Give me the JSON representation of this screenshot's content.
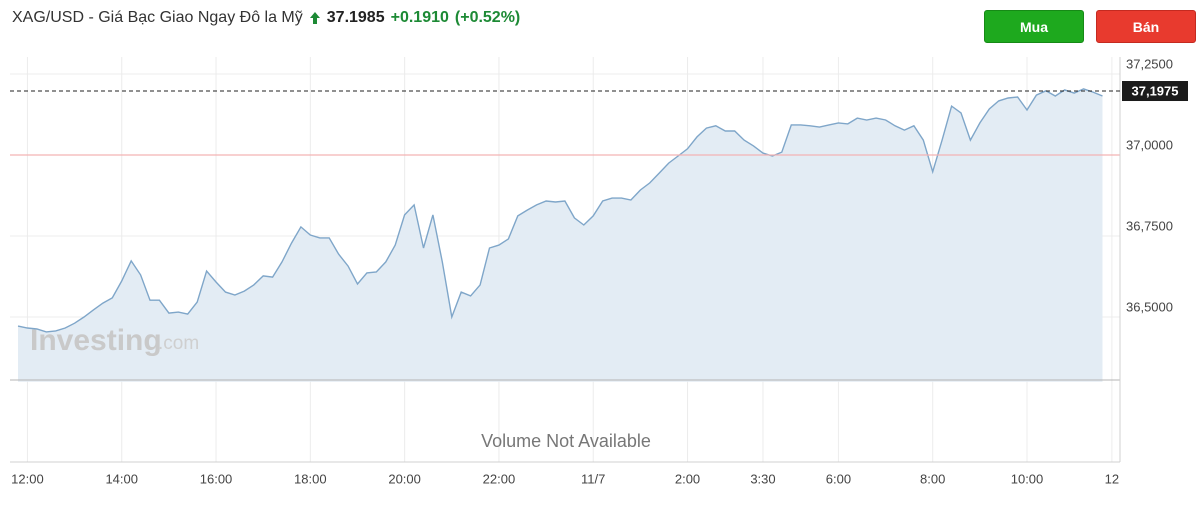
{
  "header": {
    "title": "XAG/USD - Giá Bạc Giao Ngay Đô la Mỹ",
    "price": "37.1985",
    "change": "+0.1910",
    "change_percent": "(+0.52%)"
  },
  "buttons": [
    "Mua",
    "Bán"
  ],
  "watermark": [
    "Investing",
    ".com"
  ],
  "volume_note": "Volume Not Available",
  "chart_data": {
    "type": "area",
    "categories": [
      null,
      "12:00",
      null,
      null,
      null,
      null,
      null,
      null,
      null,
      null,
      null,
      "14:00",
      null,
      null,
      null,
      null,
      null,
      null,
      null,
      null,
      null,
      "16:00",
      null,
      null,
      null,
      null,
      null,
      null,
      null,
      null,
      null,
      "18:00",
      null,
      null,
      null,
      null,
      null,
      null,
      null,
      null,
      null,
      "20:00",
      null,
      null,
      null,
      null,
      null,
      null,
      null,
      null,
      null,
      "22:00",
      null,
      null,
      null,
      null,
      null,
      null,
      null,
      null,
      null,
      "11/7",
      null,
      null,
      null,
      null,
      null,
      null,
      null,
      null,
      null,
      "2:00",
      null,
      null,
      null,
      null,
      null,
      null,
      null,
      "3:30",
      null,
      null,
      null,
      null,
      null,
      null,
      null,
      "6:00",
      null,
      null,
      null,
      null,
      null,
      null,
      null,
      null,
      null,
      "8:00",
      null,
      null,
      null,
      null,
      null,
      null,
      null,
      null,
      null,
      "10:00",
      null,
      null,
      null,
      null,
      null,
      null,
      null,
      null,
      "12"
    ],
    "values": [
      36.472,
      36.466,
      36.463,
      36.454,
      36.457,
      36.466,
      36.481,
      36.5,
      36.522,
      36.543,
      36.559,
      36.611,
      36.673,
      36.63,
      36.552,
      36.552,
      36.512,
      36.515,
      36.509,
      36.546,
      36.642,
      36.608,
      36.577,
      36.568,
      36.58,
      36.599,
      36.627,
      36.623,
      36.67,
      36.728,
      36.778,
      36.753,
      36.744,
      36.744,
      36.694,
      36.657,
      36.602,
      36.636,
      36.639,
      36.67,
      36.722,
      36.815,
      36.846,
      36.713,
      36.815,
      36.67,
      36.5,
      36.577,
      36.565,
      36.599,
      36.713,
      36.722,
      36.741,
      36.812,
      36.83,
      36.846,
      36.858,
      36.855,
      36.858,
      36.806,
      36.784,
      36.812,
      36.858,
      36.867,
      36.867,
      36.861,
      36.892,
      36.914,
      36.944,
      36.975,
      36.997,
      37.019,
      37.056,
      37.083,
      37.09,
      37.074,
      37.074,
      37.046,
      37.028,
      37.006,
      36.997,
      37.009,
      37.093,
      37.093,
      37.09,
      37.086,
      37.093,
      37.099,
      37.096,
      37.114,
      37.108,
      37.114,
      37.108,
      37.09,
      37.077,
      37.09,
      37.046,
      36.948,
      37.046,
      37.151,
      37.13,
      37.046,
      37.099,
      37.142,
      37.167,
      37.176,
      37.179,
      37.139,
      37.185,
      37.198,
      37.182,
      37.201,
      37.191,
      37.204,
      37.194,
      37.182,
      null
    ],
    "color": "#7fa6c9",
    "fill_color": "#e3ecf4",
    "ylim": [
      36.3,
      37.3
    ],
    "yticks": [
      {
        "value": 36.5,
        "label": "36,5000"
      },
      {
        "value": 36.75,
        "label": "36,7500"
      },
      {
        "value": 37.0,
        "label": "37,0000"
      },
      {
        "value": 37.25,
        "label": "37,2500"
      }
    ],
    "grid": true,
    "reference_line": {
      "value": 37.0,
      "color": "#f3b3b3"
    },
    "price_line": {
      "value": 37.1975,
      "label": "37,1975"
    }
  }
}
